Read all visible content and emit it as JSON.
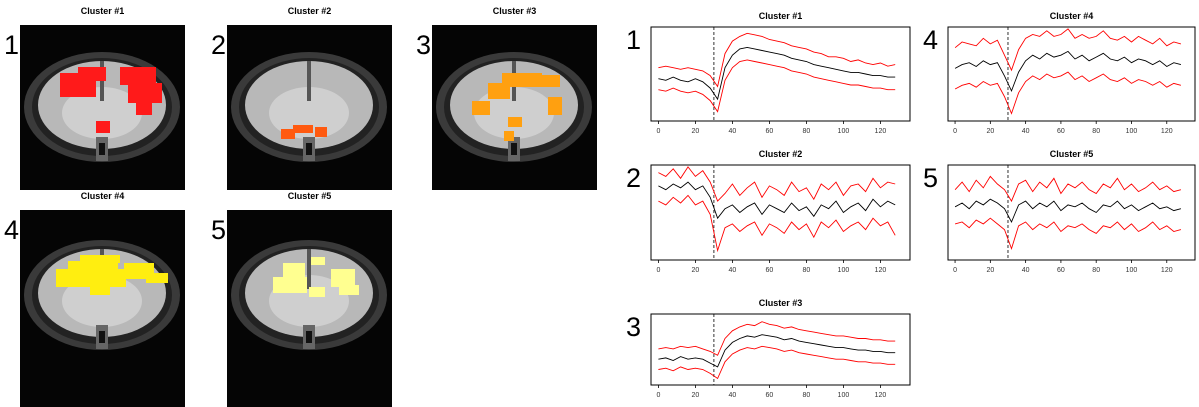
{
  "images": [
    {
      "title": "Cluster #1",
      "label": "1",
      "color": "#ff1a1a"
    },
    {
      "title": "Cluster #2",
      "label": "2",
      "color": "#ff5a10"
    },
    {
      "title": "Cluster #3",
      "label": "3",
      "color": "#ffa010"
    },
    {
      "title": "Cluster #4",
      "label": "4",
      "color": "#ffee10"
    },
    {
      "title": "Cluster #5",
      "label": "5",
      "color": "#ffff90"
    }
  ],
  "chart_data": [
    {
      "type": "line",
      "title": "Cluster #1",
      "label": "1",
      "x": [
        0,
        4,
        8,
        12,
        16,
        20,
        24,
        28,
        32,
        36,
        40,
        44,
        48,
        52,
        56,
        60,
        64,
        68,
        72,
        76,
        80,
        84,
        88,
        92,
        96,
        100,
        104,
        108,
        112,
        116,
        120,
        124,
        128
      ],
      "xlim": [
        -4,
        136
      ],
      "xticks": [
        0,
        20,
        40,
        60,
        80,
        100,
        120
      ],
      "ylim": [
        -2.5,
        3.5
      ],
      "vline": 30,
      "series": [
        {
          "color": "#ff0000",
          "values": [
            0.9,
            1.0,
            0.9,
            0.8,
            0.9,
            0.8,
            0.7,
            0.4,
            -0.3,
            1.8,
            2.6,
            2.9,
            3.1,
            3.0,
            2.9,
            2.7,
            2.6,
            2.5,
            2.3,
            2.2,
            2.1,
            1.9,
            1.8,
            1.6,
            1.6,
            1.5,
            1.3,
            1.4,
            1.2,
            1.1,
            1.2,
            1.0,
            1.1
          ]
        },
        {
          "color": "#000000",
          "values": [
            0.2,
            0.1,
            0.3,
            0.1,
            0.0,
            0.2,
            0.0,
            -0.4,
            -1.1,
            0.9,
            1.7,
            2.1,
            2.2,
            2.1,
            2.0,
            1.9,
            1.8,
            1.7,
            1.5,
            1.4,
            1.3,
            1.1,
            1.0,
            0.9,
            0.8,
            0.7,
            0.6,
            0.6,
            0.5,
            0.4,
            0.4,
            0.3,
            0.3
          ]
        },
        {
          "color": "#ff0000",
          "values": [
            -0.5,
            -0.6,
            -0.4,
            -0.6,
            -0.7,
            -0.6,
            -0.8,
            -1.2,
            -1.9,
            0.1,
            0.9,
            1.3,
            1.4,
            1.3,
            1.2,
            1.1,
            1.0,
            0.9,
            0.7,
            0.6,
            0.5,
            0.3,
            0.2,
            0.1,
            0.0,
            -0.1,
            -0.2,
            -0.2,
            -0.3,
            -0.4,
            -0.4,
            -0.5,
            -0.5
          ]
        }
      ]
    },
    {
      "type": "line",
      "title": "Cluster #2",
      "label": "2",
      "x": [
        0,
        4,
        8,
        12,
        16,
        20,
        24,
        28,
        32,
        36,
        40,
        44,
        48,
        52,
        56,
        60,
        64,
        68,
        72,
        76,
        80,
        84,
        88,
        92,
        96,
        100,
        104,
        108,
        112,
        116,
        120,
        124,
        128
      ],
      "xlim": [
        -4,
        136
      ],
      "xticks": [
        0,
        20,
        40,
        60,
        80,
        100,
        120
      ],
      "ylim": [
        -2.5,
        2.5
      ],
      "vline": 30,
      "series": [
        {
          "color": "#ff0000",
          "values": [
            2.1,
            1.9,
            2.3,
            1.8,
            2.4,
            1.9,
            2.2,
            1.6,
            0.6,
            1.0,
            1.5,
            0.9,
            1.3,
            1.6,
            0.8,
            1.4,
            1.2,
            0.9,
            1.6,
            1.1,
            1.3,
            0.7,
            1.5,
            1.2,
            1.6,
            0.9,
            1.4,
            1.5,
            1.1,
            1.8,
            1.3,
            1.6,
            1.5
          ]
        },
        {
          "color": "#000000",
          "values": [
            1.4,
            1.2,
            1.5,
            1.3,
            1.6,
            1.2,
            1.4,
            0.8,
            -0.3,
            0.2,
            0.4,
            0.0,
            0.3,
            0.5,
            -0.1,
            0.4,
            0.2,
            0.0,
            0.5,
            0.1,
            0.3,
            -0.2,
            0.4,
            0.2,
            0.6,
            0.0,
            0.3,
            0.5,
            0.1,
            0.7,
            0.3,
            0.6,
            0.4
          ]
        },
        {
          "color": "#ff0000",
          "values": [
            0.6,
            0.4,
            0.8,
            0.5,
            0.9,
            0.4,
            0.6,
            -0.1,
            -2.0,
            -0.8,
            -0.6,
            -1.0,
            -0.7,
            -0.5,
            -1.2,
            -0.6,
            -0.8,
            -1.1,
            -0.5,
            -0.9,
            -0.6,
            -1.3,
            -0.5,
            -0.8,
            -0.4,
            -1.0,
            -0.7,
            -0.5,
            -0.9,
            -0.3,
            -0.7,
            -0.5,
            -1.2
          ]
        }
      ]
    },
    {
      "type": "line",
      "title": "Cluster #3",
      "label": "3",
      "x": [
        0,
        4,
        8,
        12,
        16,
        20,
        24,
        28,
        32,
        36,
        40,
        44,
        48,
        52,
        56,
        60,
        64,
        68,
        72,
        76,
        80,
        84,
        88,
        92,
        96,
        100,
        104,
        108,
        112,
        116,
        120,
        124,
        128
      ],
      "xlim": [
        -4,
        136
      ],
      "xticks": [
        0,
        20,
        40,
        60,
        80,
        100,
        120
      ],
      "ylim": [
        -2,
        3.5
      ],
      "vline": 30,
      "series": [
        {
          "color": "#ff0000",
          "values": [
            0.8,
            0.9,
            0.8,
            1.0,
            0.9,
            1.0,
            0.8,
            0.6,
            0.3,
            1.6,
            2.2,
            2.5,
            2.7,
            2.6,
            2.9,
            2.7,
            2.6,
            2.4,
            2.5,
            2.3,
            2.2,
            2.1,
            2.0,
            1.9,
            1.8,
            1.8,
            1.7,
            1.6,
            1.6,
            1.5,
            1.5,
            1.4,
            1.4
          ]
        },
        {
          "color": "#000000",
          "values": [
            0.0,
            0.1,
            -0.1,
            0.2,
            0.0,
            0.1,
            0.0,
            -0.3,
            -0.6,
            0.7,
            1.3,
            1.6,
            1.8,
            1.7,
            1.9,
            1.8,
            1.7,
            1.5,
            1.6,
            1.4,
            1.3,
            1.2,
            1.1,
            1.0,
            0.9,
            0.9,
            0.8,
            0.7,
            0.7,
            0.6,
            0.6,
            0.5,
            0.5
          ]
        },
        {
          "color": "#ff0000",
          "values": [
            -0.8,
            -0.7,
            -0.9,
            -0.6,
            -0.8,
            -0.7,
            -0.8,
            -1.1,
            -1.5,
            -0.2,
            0.4,
            0.7,
            0.9,
            0.8,
            1.0,
            0.9,
            0.8,
            0.6,
            0.7,
            0.5,
            0.4,
            0.3,
            0.2,
            0.1,
            0.0,
            0.0,
            -0.1,
            -0.2,
            -0.2,
            -0.3,
            -0.3,
            -0.4,
            -0.4
          ]
        }
      ]
    },
    {
      "type": "line",
      "title": "Cluster #4",
      "label": "4",
      "x": [
        0,
        4,
        8,
        12,
        16,
        20,
        24,
        28,
        32,
        36,
        40,
        44,
        48,
        52,
        56,
        60,
        64,
        68,
        72,
        76,
        80,
        84,
        88,
        92,
        96,
        100,
        104,
        108,
        112,
        116,
        120,
        124,
        128
      ],
      "xlim": [
        -4,
        136
      ],
      "xticks": [
        0,
        20,
        40,
        60,
        80,
        100,
        120
      ],
      "ylim": [
        -2,
        3
      ],
      "vline": 30,
      "series": [
        {
          "color": "#ff0000",
          "values": [
            1.9,
            2.2,
            2.1,
            2.0,
            2.4,
            2.1,
            2.3,
            1.5,
            0.7,
            1.8,
            2.4,
            2.6,
            2.5,
            2.8,
            2.5,
            2.6,
            2.9,
            2.4,
            2.6,
            2.4,
            2.5,
            2.8,
            2.4,
            2.3,
            2.5,
            2.2,
            2.5,
            2.3,
            2.1,
            2.4,
            2.0,
            2.2,
            2.1
          ]
        },
        {
          "color": "#000000",
          "values": [
            0.8,
            1.0,
            1.1,
            0.9,
            1.2,
            1.0,
            1.1,
            0.4,
            -0.4,
            0.6,
            1.2,
            1.5,
            1.3,
            1.6,
            1.4,
            1.5,
            1.7,
            1.3,
            1.5,
            1.2,
            1.4,
            1.6,
            1.3,
            1.2,
            1.4,
            1.1,
            1.3,
            1.2,
            1.0,
            1.2,
            0.9,
            1.1,
            1.0
          ]
        },
        {
          "color": "#ff0000",
          "values": [
            -0.3,
            -0.1,
            0.0,
            -0.2,
            0.1,
            -0.1,
            0.0,
            -0.7,
            -1.6,
            -0.5,
            0.1,
            0.4,
            0.2,
            0.5,
            0.3,
            0.4,
            0.6,
            0.2,
            0.4,
            0.1,
            0.3,
            0.5,
            0.2,
            0.1,
            0.3,
            0.0,
            0.2,
            0.1,
            -0.1,
            0.1,
            -0.2,
            0.0,
            -0.1
          ]
        }
      ]
    },
    {
      "type": "line",
      "title": "Cluster #5",
      "label": "5",
      "x": [
        0,
        4,
        8,
        12,
        16,
        20,
        24,
        28,
        32,
        36,
        40,
        44,
        48,
        52,
        56,
        60,
        64,
        68,
        72,
        76,
        80,
        84,
        88,
        92,
        96,
        100,
        104,
        108,
        112,
        116,
        120,
        124,
        128
      ],
      "xlim": [
        -4,
        136
      ],
      "xticks": [
        0,
        20,
        40,
        60,
        80,
        100,
        120
      ],
      "ylim": [
        -2.5,
        2.5
      ],
      "vline": 30,
      "series": [
        {
          "color": "#ff0000",
          "values": [
            1.2,
            1.6,
            1.1,
            1.7,
            1.3,
            1.9,
            1.5,
            1.2,
            0.6,
            1.5,
            1.7,
            1.1,
            1.6,
            1.3,
            1.8,
            1.0,
            1.5,
            1.3,
            1.6,
            1.2,
            1.0,
            1.5,
            1.3,
            1.8,
            1.2,
            1.5,
            1.1,
            1.3,
            1.6,
            1.2,
            1.4,
            1.1,
            1.2
          ]
        },
        {
          "color": "#000000",
          "values": [
            0.3,
            0.5,
            0.2,
            0.6,
            0.4,
            0.7,
            0.5,
            0.2,
            -0.5,
            0.4,
            0.6,
            0.2,
            0.5,
            0.3,
            0.6,
            0.1,
            0.4,
            0.3,
            0.5,
            0.2,
            0.0,
            0.4,
            0.3,
            0.6,
            0.2,
            0.4,
            0.1,
            0.3,
            0.5,
            0.2,
            0.3,
            0.1,
            0.2
          ]
        },
        {
          "color": "#ff0000",
          "values": [
            -0.6,
            -0.5,
            -0.8,
            -0.4,
            -0.6,
            -0.3,
            -0.6,
            -0.9,
            -1.9,
            -0.7,
            -0.5,
            -0.9,
            -0.6,
            -0.8,
            -0.5,
            -1.0,
            -0.7,
            -0.8,
            -0.6,
            -0.9,
            -1.1,
            -0.7,
            -0.8,
            -0.5,
            -0.9,
            -0.6,
            -1.0,
            -0.8,
            -0.5,
            -0.9,
            -0.7,
            -1.0,
            -0.9
          ]
        }
      ]
    }
  ]
}
